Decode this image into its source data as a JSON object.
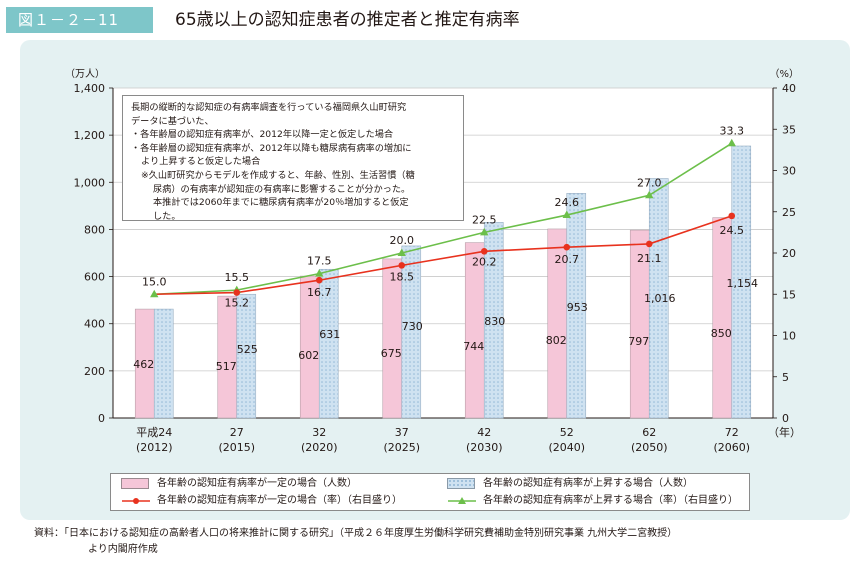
{
  "figure": {
    "label": "図１－２－11",
    "title": "65歳以上の認知症患者の推定者と推定有病率"
  },
  "note": {
    "lines": [
      "長期の縦断的な認知症の有病率調査を行っている福岡県久山町研究",
      "データに基づいた、",
      "・各年齢層の認知症有病率が、2012年以降一定と仮定した場合",
      "・各年齢層の認知症有病率が、2012年以降も糖尿病有病率の増加に",
      "より上昇すると仮定した場合",
      "※久山町研究からモデルを作成すると、年齢、性別、生活習慣（糖",
      "尿病）の有病率が認知症の有病率に影響することが分かった。",
      "本推計では2060年までに糖尿病有病率が20％増加すると仮定",
      "した。"
    ]
  },
  "legend": {
    "bar_const": "各年齢の認知症有病率が一定の場合（人数）",
    "bar_rise": "各年齢の認知症有病率が上昇する場合（人数）",
    "line_const": "各年齢の認知症有病率が一定の場合（率）（右目盛り）",
    "line_rise": "各年齢の認知症有病率が上昇する場合（率）（右目盛り）"
  },
  "source": {
    "line1": "資料：「日本における認知症の高齢者人口の将来推計に関する研究」（平成２６年度厚生労働科学研究費補助金特別研究事業 九州大学二宮教授）",
    "line2": "より内閣府作成"
  },
  "colors": {
    "bar_const": "#f5c6d8",
    "bar_rise": "#cfe2f1",
    "line_const": "#e8321e",
    "line_rise": "#6cbf4a",
    "panel": "#e4f1f2"
  },
  "chart_data": {
    "type": "bar",
    "title": "65歳以上の認知症患者の推定者と推定有病率",
    "categories": [
      "平成24",
      "27",
      "32",
      "37",
      "42",
      "52",
      "62",
      "72"
    ],
    "categories_sub": [
      "(2012)",
      "(2015)",
      "(2020)",
      "(2025)",
      "(2030)",
      "(2040)",
      "(2050)",
      "(2060)"
    ],
    "x_unit": "（年）",
    "y_left": {
      "unit": "（万人）",
      "min": 0,
      "max": 1400,
      "ticks": [
        "0",
        "200",
        "400",
        "600",
        "800",
        "1,000",
        "1,200",
        "1,400"
      ]
    },
    "y_right": {
      "unit": "（%）",
      "min": 0,
      "max": 40,
      "ticks": [
        "0",
        "5",
        "10",
        "15",
        "20",
        "25",
        "30",
        "35",
        "40"
      ]
    },
    "series": [
      {
        "name": "各年齢の認知症有病率が一定の場合（人数）",
        "kind": "bar",
        "axis": "left",
        "values": [
          462,
          517,
          602,
          675,
          744,
          802,
          797,
          850
        ],
        "labels": [
          "462",
          "517",
          "602",
          "675",
          "744",
          "802",
          "797",
          "850"
        ]
      },
      {
        "name": "各年齢の認知症有病率が上昇する場合（人数）",
        "kind": "bar",
        "axis": "left",
        "values": [
          null,
          525,
          631,
          730,
          830,
          953,
          1016,
          1154
        ],
        "labels": [
          "",
          "525",
          "631",
          "730",
          "830",
          "953",
          "1,016",
          "1,154"
        ]
      },
      {
        "name": "各年齢の認知症有病率が一定の場合（率）（右目盛り）",
        "kind": "line",
        "axis": "right",
        "values": [
          15.0,
          15.2,
          16.7,
          18.5,
          20.2,
          20.7,
          21.1,
          24.5
        ],
        "labels": [
          "",
          "15.2",
          "16.7",
          "18.5",
          "20.2",
          "20.7",
          "21.1",
          "24.5"
        ]
      },
      {
        "name": "各年齢の認知症有病率が上昇する場合（率）（右目盛り）",
        "kind": "line",
        "axis": "right",
        "values": [
          15.0,
          15.5,
          17.5,
          20.0,
          22.5,
          24.6,
          27.0,
          33.3
        ],
        "labels": [
          "15.0",
          "15.5",
          "17.5",
          "20.0",
          "22.5",
          "24.6",
          "27.0",
          "33.3"
        ]
      }
    ],
    "grid": true,
    "legend_position": "bottom"
  }
}
